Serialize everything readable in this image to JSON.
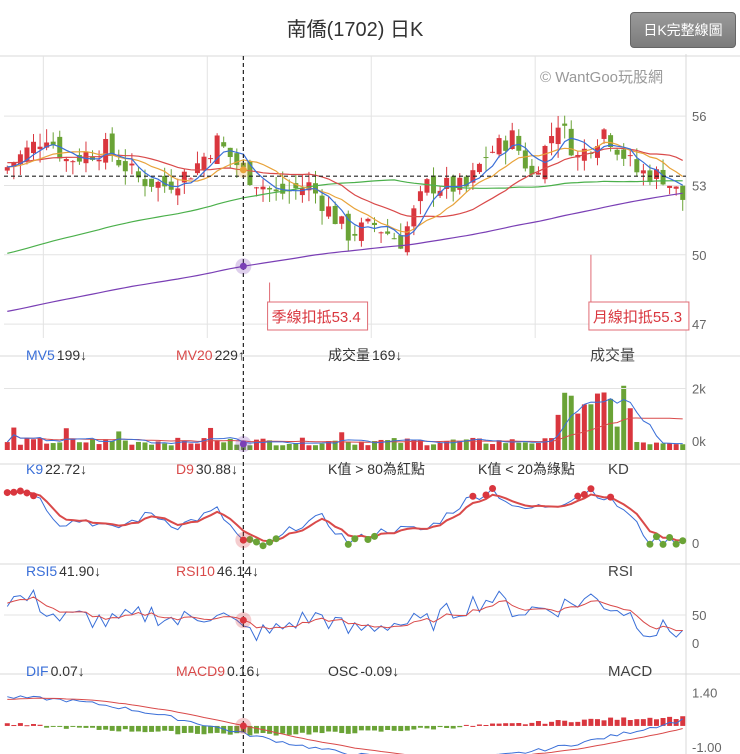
{
  "title": "南僑(1702) 日K",
  "button_label": "日K完整線圖",
  "watermark": "© WantGoo玩股網",
  "colors": {
    "up": "#d9363e",
    "down": "#6aa336",
    "ma5": "#3a6fd8",
    "ma10": "#e8a33a",
    "ma20": "#d94a4a",
    "ma60": "#4bb04b",
    "ma120": "#7a3fb5",
    "grid": "#e3e3e3"
  },
  "chart_data": [
    {
      "type": "candlestick",
      "name": "price",
      "y_ticks": [
        56,
        53,
        50,
        47
      ],
      "ylim": [
        46.4,
        58.6
      ],
      "crosshair_price": 53.4,
      "annotations": [
        {
          "text": "季線扣抵53.4"
        },
        {
          "text": "月線扣抵55.3"
        }
      ]
    },
    {
      "type": "bar",
      "name": "volume",
      "header": [
        {
          "label": "MV5",
          "value": "199↓",
          "color": "#3a6fd8"
        },
        {
          "label": "MV20",
          "value": "229↑",
          "color": "#d94a4a"
        },
        {
          "label": "成交量",
          "value": "169↓",
          "color": "#333"
        }
      ],
      "panel_label": "成交量",
      "y_ticks": [
        "2k",
        "0k"
      ]
    },
    {
      "type": "line",
      "name": "KD",
      "header": [
        {
          "label": "K9",
          "value": "22.72↓",
          "color": "#3a6fd8"
        },
        {
          "label": "D9",
          "value": "30.88↓",
          "color": "#d94a4a"
        }
      ],
      "notes": [
        "K值 > 80為紅點",
        "K值 < 20為綠點"
      ],
      "panel_label": "KD",
      "y_ticks": [
        "0"
      ],
      "ylim": [
        -5,
        110
      ]
    },
    {
      "type": "line",
      "name": "RSI",
      "header": [
        {
          "label": "RSI5",
          "value": "41.90↓",
          "color": "#3a6fd8"
        },
        {
          "label": "RSI10",
          "value": "46.14↓",
          "color": "#d94a4a"
        }
      ],
      "panel_label": "RSI",
      "y_ticks": [
        "50",
        "0"
      ],
      "ylim": [
        0,
        100
      ]
    },
    {
      "type": "line",
      "name": "MACD",
      "header": [
        {
          "label": "DIF",
          "value": "0.07↓",
          "color": "#3a6fd8"
        },
        {
          "label": "MACD9",
          "value": "0.16↓",
          "color": "#d94a4a"
        },
        {
          "label": "OSC",
          "value": "-0.09↓",
          "color": "#333"
        }
      ],
      "panel_label": "MACD",
      "y_ticks": [
        "1.40",
        "-1.00"
      ],
      "ylim": [
        -1.1,
        1.6
      ]
    }
  ]
}
